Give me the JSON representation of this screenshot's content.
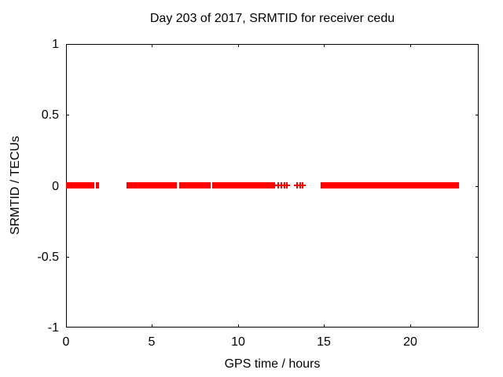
{
  "chart_data": {
    "type": "scatter",
    "title": "Day 203 of 2017, SRMTID for receiver cedu",
    "xlabel": "GPS time / hours",
    "ylabel": "SRMTID / TECUs",
    "xlim": [
      0,
      24
    ],
    "ylim": [
      -1,
      1
    ],
    "xticks": {
      "values": [
        0,
        5,
        10,
        15,
        20
      ],
      "labels": [
        "0",
        "5",
        "10",
        "15",
        "20"
      ]
    },
    "yticks": {
      "values": [
        1,
        0.5,
        0,
        -0.5,
        -1
      ],
      "labels": [
        "1",
        "0.5",
        "0",
        "-0.5",
        "-1"
      ]
    },
    "grid": "dashed both axes",
    "legend": "none",
    "series": [
      {
        "name": "SRMTID",
        "marker": "+",
        "color": "#ff0000",
        "y_value": 0,
        "dense_segments_x_hours": [
          [
            0.0,
            1.65
          ],
          [
            1.74,
            1.92
          ],
          [
            3.52,
            6.45
          ],
          [
            6.58,
            8.41
          ],
          [
            8.5,
            12.16
          ],
          [
            14.81,
            22.86
          ]
        ],
        "sparse_points_x_hours": [
          12.34,
          12.53,
          12.71,
          12.85,
          13.44,
          13.62,
          13.76
        ]
      }
    ],
    "colors": {
      "data": "#ff0000",
      "grid": "#a0a0a0",
      "axis": "#000000",
      "text": "#000000",
      "background": "#ffffff"
    }
  }
}
